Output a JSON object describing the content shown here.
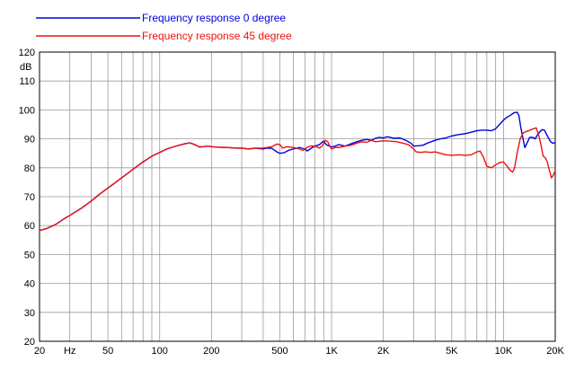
{
  "chart_data": {
    "type": "line",
    "xscale": "log",
    "xlim": [
      20,
      20000
    ],
    "ylim": [
      20,
      120
    ],
    "grid": true,
    "ylabel": "dB",
    "legend_position": "top-left",
    "xticks": [
      {
        "value": 20,
        "label": "20"
      },
      {
        "value": 30,
        "label": "Hz"
      },
      {
        "value": 50,
        "label": "50"
      },
      {
        "value": 100,
        "label": "100"
      },
      {
        "value": 200,
        "label": "200"
      },
      {
        "value": 500,
        "label": "500"
      },
      {
        "value": 1000,
        "label": "1K"
      },
      {
        "value": 2000,
        "label": "2K"
      },
      {
        "value": 5000,
        "label": "5K"
      },
      {
        "value": 10000,
        "label": "10K"
      },
      {
        "value": 20000,
        "label": "20K"
      }
    ],
    "yticks": [
      20,
      30,
      40,
      50,
      60,
      70,
      80,
      90,
      100,
      110,
      120
    ],
    "series": [
      {
        "name": "Frequency response 0 degree",
        "color": "#0000dd",
        "points": [
          [
            20,
            58.3
          ],
          [
            22,
            59
          ],
          [
            25,
            60.5
          ],
          [
            28,
            62.5
          ],
          [
            30,
            63.5
          ],
          [
            35,
            66
          ],
          [
            40,
            68.5
          ],
          [
            45,
            71
          ],
          [
            50,
            73
          ],
          [
            55,
            74.8
          ],
          [
            60,
            76.5
          ],
          [
            65,
            78
          ],
          [
            70,
            79.5
          ],
          [
            75,
            80.8
          ],
          [
            80,
            82
          ],
          [
            90,
            84
          ],
          [
            100,
            85.3
          ],
          [
            110,
            86.5
          ],
          [
            120,
            87.2
          ],
          [
            130,
            87.8
          ],
          [
            140,
            88.3
          ],
          [
            150,
            88.6
          ],
          [
            160,
            88
          ],
          [
            170,
            87.2
          ],
          [
            180,
            87.3
          ],
          [
            190,
            87.5
          ],
          [
            200,
            87.3
          ],
          [
            220,
            87.1
          ],
          [
            250,
            87
          ],
          [
            280,
            86.8
          ],
          [
            300,
            86.8
          ],
          [
            330,
            86.5
          ],
          [
            360,
            86.8
          ],
          [
            400,
            86.5
          ],
          [
            420,
            86.8
          ],
          [
            450,
            86.7
          ],
          [
            480,
            85.5
          ],
          [
            500,
            85
          ],
          [
            530,
            85.2
          ],
          [
            560,
            86
          ],
          [
            600,
            86.5
          ],
          [
            650,
            87
          ],
          [
            700,
            86.5
          ],
          [
            720,
            85.8
          ],
          [
            750,
            86.5
          ],
          [
            800,
            87.5
          ],
          [
            850,
            88
          ],
          [
            880,
            88.8
          ],
          [
            900,
            89.2
          ],
          [
            930,
            88
          ],
          [
            970,
            87.5
          ],
          [
            1000,
            87.2
          ],
          [
            1050,
            87.5
          ],
          [
            1100,
            88
          ],
          [
            1200,
            87.5
          ],
          [
            1300,
            88.3
          ],
          [
            1400,
            89
          ],
          [
            1500,
            89.5
          ],
          [
            1600,
            89.8
          ],
          [
            1700,
            89.5
          ],
          [
            1800,
            90.2
          ],
          [
            1900,
            90.5
          ],
          [
            2000,
            90.3
          ],
          [
            2100,
            90.7
          ],
          [
            2200,
            90.5
          ],
          [
            2300,
            90.2
          ],
          [
            2500,
            90.3
          ],
          [
            2700,
            89.5
          ],
          [
            2900,
            88.5
          ],
          [
            3000,
            87.5
          ],
          [
            3200,
            87.6
          ],
          [
            3400,
            87.8
          ],
          [
            3600,
            88.5
          ],
          [
            3800,
            89
          ],
          [
            4000,
            89.5
          ],
          [
            4300,
            90
          ],
          [
            4600,
            90.3
          ],
          [
            5000,
            91
          ],
          [
            5500,
            91.5
          ],
          [
            6000,
            91.8
          ],
          [
            6500,
            92.3
          ],
          [
            7000,
            92.8
          ],
          [
            7500,
            93
          ],
          [
            8000,
            93
          ],
          [
            8500,
            92.8
          ],
          [
            9000,
            93.5
          ],
          [
            9500,
            95
          ],
          [
            10000,
            96.5
          ],
          [
            10500,
            97.5
          ],
          [
            11000,
            98.2
          ],
          [
            11500,
            99
          ],
          [
            12000,
            99.2
          ],
          [
            12300,
            98
          ],
          [
            12600,
            94
          ],
          [
            13000,
            90
          ],
          [
            13300,
            87
          ],
          [
            13700,
            88.5
          ],
          [
            14200,
            90.5
          ],
          [
            14800,
            90.5
          ],
          [
            15300,
            90
          ],
          [
            15800,
            91.5
          ],
          [
            16300,
            92.5
          ],
          [
            16800,
            93.2
          ],
          [
            17300,
            93
          ],
          [
            18000,
            91
          ],
          [
            18800,
            89
          ],
          [
            19300,
            88.5
          ],
          [
            20000,
            88.7
          ]
        ]
      },
      {
        "name": "Frequency response 45 degree",
        "color": "#ee1111",
        "points": [
          [
            20,
            58.3
          ],
          [
            22,
            59
          ],
          [
            25,
            60.5
          ],
          [
            28,
            62.5
          ],
          [
            30,
            63.5
          ],
          [
            35,
            66
          ],
          [
            40,
            68.5
          ],
          [
            45,
            71
          ],
          [
            50,
            73
          ],
          [
            55,
            74.8
          ],
          [
            60,
            76.5
          ],
          [
            65,
            78
          ],
          [
            70,
            79.5
          ],
          [
            75,
            80.8
          ],
          [
            80,
            82
          ],
          [
            90,
            84
          ],
          [
            100,
            85.3
          ],
          [
            110,
            86.5
          ],
          [
            120,
            87.2
          ],
          [
            130,
            87.8
          ],
          [
            140,
            88.3
          ],
          [
            150,
            88.6
          ],
          [
            160,
            88
          ],
          [
            170,
            87.2
          ],
          [
            180,
            87.3
          ],
          [
            190,
            87.5
          ],
          [
            200,
            87.3
          ],
          [
            220,
            87.1
          ],
          [
            250,
            87
          ],
          [
            280,
            86.8
          ],
          [
            300,
            86.8
          ],
          [
            330,
            86.5
          ],
          [
            360,
            86.8
          ],
          [
            400,
            86.8
          ],
          [
            450,
            87.3
          ],
          [
            480,
            88.2
          ],
          [
            500,
            88
          ],
          [
            520,
            86.8
          ],
          [
            550,
            87.3
          ],
          [
            600,
            87
          ],
          [
            650,
            86.5
          ],
          [
            680,
            86
          ],
          [
            720,
            87
          ],
          [
            750,
            87.5
          ],
          [
            800,
            87.5
          ],
          [
            850,
            86.8
          ],
          [
            880,
            87.5
          ],
          [
            920,
            89.5
          ],
          [
            950,
            89
          ],
          [
            980,
            87.3
          ],
          [
            1000,
            86.5
          ],
          [
            1050,
            87
          ],
          [
            1100,
            87
          ],
          [
            1200,
            87.5
          ],
          [
            1300,
            87.8
          ],
          [
            1400,
            88.5
          ],
          [
            1500,
            89
          ],
          [
            1600,
            88.8
          ],
          [
            1700,
            89.5
          ],
          [
            1800,
            89
          ],
          [
            2000,
            89.3
          ],
          [
            2200,
            89.2
          ],
          [
            2400,
            89
          ],
          [
            2600,
            88.5
          ],
          [
            2800,
            88
          ],
          [
            3000,
            86.5
          ],
          [
            3100,
            85.5
          ],
          [
            3300,
            85.3
          ],
          [
            3500,
            85.5
          ],
          [
            3800,
            85.3
          ],
          [
            4000,
            85.5
          ],
          [
            4300,
            85
          ],
          [
            4600,
            84.5
          ],
          [
            5000,
            84.3
          ],
          [
            5500,
            84.5
          ],
          [
            6000,
            84.3
          ],
          [
            6500,
            84.5
          ],
          [
            7000,
            85.5
          ],
          [
            7300,
            85.8
          ],
          [
            7600,
            84
          ],
          [
            8000,
            80.5
          ],
          [
            8500,
            80
          ],
          [
            9000,
            81
          ],
          [
            9500,
            81.8
          ],
          [
            10000,
            82
          ],
          [
            10500,
            80.5
          ],
          [
            11000,
            79
          ],
          [
            11300,
            78.5
          ],
          [
            11600,
            80
          ],
          [
            12000,
            85
          ],
          [
            12500,
            90
          ],
          [
            13000,
            92
          ],
          [
            13500,
            92.5
          ],
          [
            14000,
            92.8
          ],
          [
            14500,
            93.2
          ],
          [
            15000,
            93.5
          ],
          [
            15500,
            93.8
          ],
          [
            16000,
            91.5
          ],
          [
            16500,
            88
          ],
          [
            17000,
            84
          ],
          [
            17500,
            83.5
          ],
          [
            18000,
            82
          ],
          [
            18500,
            79
          ],
          [
            19000,
            76.5
          ],
          [
            19500,
            77.5
          ],
          [
            20000,
            79
          ]
        ]
      }
    ]
  }
}
